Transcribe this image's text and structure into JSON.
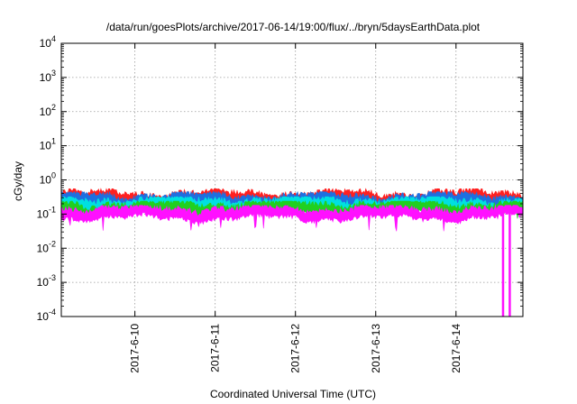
{
  "chart_data": {
    "type": "area",
    "title": "/data/run/goesPlots/archive/2017-06-14/19:00/flux/../bryn/5daysEarthData.plot",
    "xlabel": "Coordinated Universal Time (UTC)",
    "ylabel": "cGy/day",
    "y_scale": "log",
    "ylim": [
      0.0001,
      10000
    ],
    "y_ticks": [
      {
        "base": "10",
        "exp": "-4",
        "value": 0.0001
      },
      {
        "base": "10",
        "exp": "-3",
        "value": 0.001
      },
      {
        "base": "10",
        "exp": "-2",
        "value": 0.01
      },
      {
        "base": "10",
        "exp": "-1",
        "value": 0.1
      },
      {
        "base": "10",
        "exp": "0",
        "value": 1
      },
      {
        "base": "10",
        "exp": "1",
        "value": 10
      },
      {
        "base": "10",
        "exp": "2",
        "value": 100
      },
      {
        "base": "10",
        "exp": "3",
        "value": 1000
      },
      {
        "base": "10",
        "exp": "4",
        "value": 10000
      }
    ],
    "xlim": [
      "2017-06-09 02:00",
      "2017-06-14 20:00"
    ],
    "x_ticks": [
      "2017-6-10",
      "2017-6-11",
      "2017-6-12",
      "2017-6-13",
      "2017-6-14"
    ],
    "grid": true,
    "series_colors": [
      "#ff2020",
      "#1f6fe0",
      "#00e0e0",
      "#20d020",
      "#ff10ff"
    ],
    "series": [
      {
        "color": "#ff2020",
        "level": 0.34,
        "min": 0.22,
        "max": 0.55
      },
      {
        "color": "#1f6fe0",
        "level": 0.29,
        "min": 0.18,
        "max": 0.45
      },
      {
        "color": "#00e0e0",
        "level": 0.22,
        "min": 0.15,
        "max": 0.32
      },
      {
        "color": "#20d020",
        "level": 0.17,
        "min": 0.12,
        "max": 0.24
      },
      {
        "color": "#ff10ff",
        "level": 0.12,
        "min": 0.05,
        "max": 0.18
      }
    ],
    "dropouts": [
      "2017-06-14 14:00",
      "2017-06-14 16:00"
    ]
  }
}
